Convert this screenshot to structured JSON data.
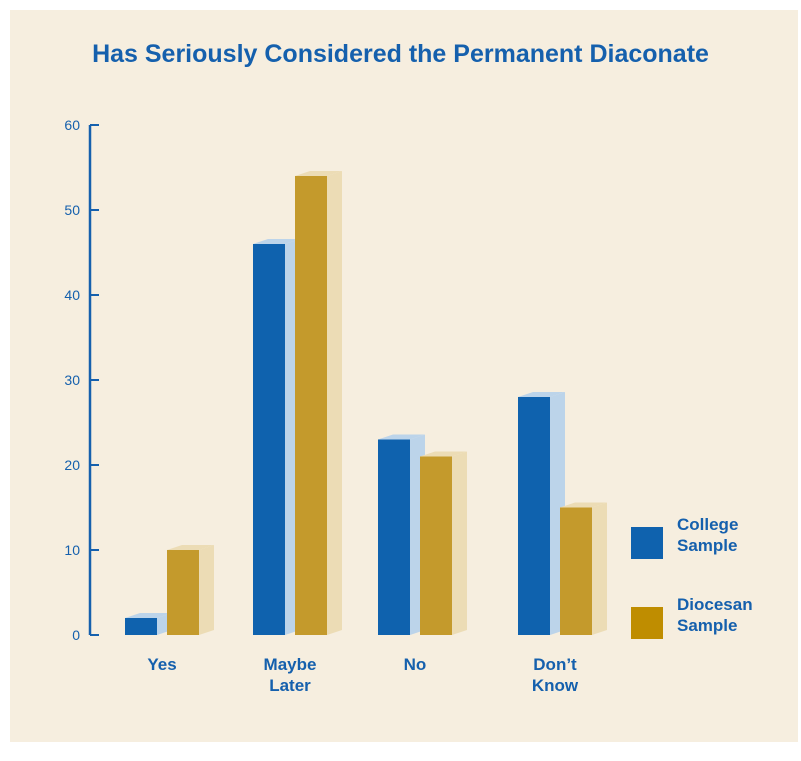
{
  "chart_data": {
    "type": "bar",
    "title": "Has Seriously Considered the Permanent Diaconate",
    "categories": [
      [
        "Yes"
      ],
      [
        "Maybe",
        "Later"
      ],
      [
        "No"
      ],
      [
        "Don’t",
        "Know"
      ]
    ],
    "series": [
      {
        "name": "College Sample",
        "name_lines": [
          "College",
          "Sample"
        ],
        "values": [
          2,
          46,
          23,
          28
        ]
      },
      {
        "name": "Diocesan Sample",
        "name_lines": [
          "Diocesan",
          "Sample"
        ],
        "values": [
          10,
          54,
          21,
          15
        ]
      }
    ],
    "ylim": [
      0,
      60
    ],
    "yticks": [
      0,
      10,
      20,
      30,
      40,
      50,
      60
    ],
    "legend_position": "right",
    "grid": false
  },
  "colors": {
    "series": [
      "#0f62ae",
      "#c49a2c"
    ],
    "series_side": [
      "#bcd4ea",
      "#ecdcb5"
    ],
    "legend_swatch": [
      "#0f62ae",
      "#bf8d00"
    ],
    "axis": "#1560ad",
    "text": "#1560ad"
  }
}
